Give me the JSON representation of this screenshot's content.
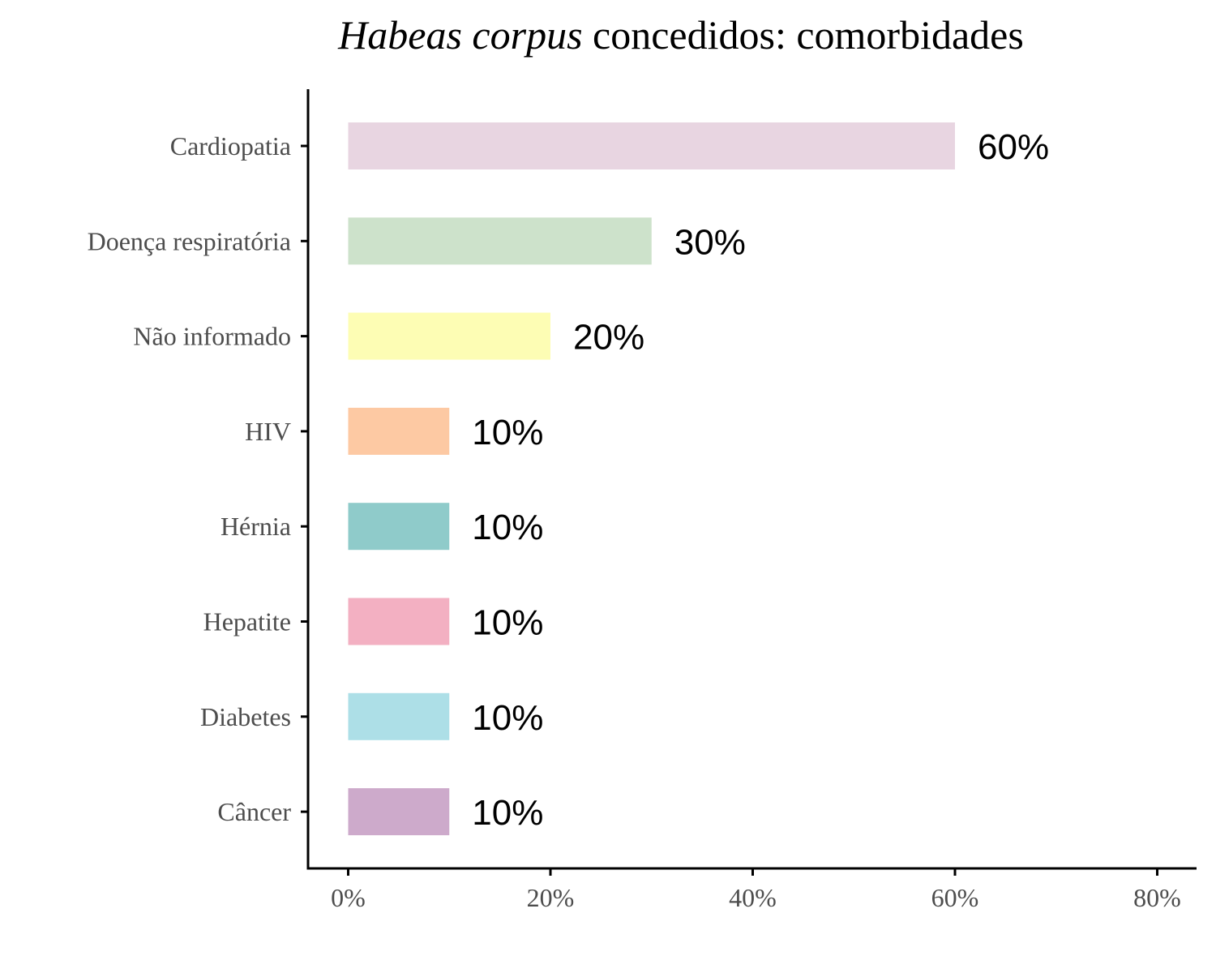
{
  "chart_data": {
    "type": "bar",
    "orientation": "horizontal",
    "title_italic": "Habeas corpus",
    "title_rest": " concedidos: comorbidades",
    "xlabel": "",
    "ylabel": "",
    "xlim": [
      0,
      80
    ],
    "x_ticks": [
      0,
      20,
      40,
      60,
      80
    ],
    "x_tick_labels": [
      "0%",
      "20%",
      "40%",
      "60%",
      "80%"
    ],
    "grid": false,
    "legend": "none",
    "categories": [
      "Cardiopatia",
      "Doença respiratória",
      "Não informado",
      "HIV",
      "Hérnia",
      "Hepatite",
      "Diabetes",
      "Câncer"
    ],
    "values": [
      60,
      30,
      20,
      10,
      10,
      10,
      10,
      10
    ],
    "value_labels": [
      "60%",
      "30%",
      "20%",
      "10%",
      "10%",
      "10%",
      "10%",
      "10%"
    ],
    "colors": [
      "#e8d5e1",
      "#cde2cb",
      "#fdfdb4",
      "#fdc9a3",
      "#8fcbca",
      "#f3b0c2",
      "#addfe7",
      "#cdaacb"
    ]
  }
}
